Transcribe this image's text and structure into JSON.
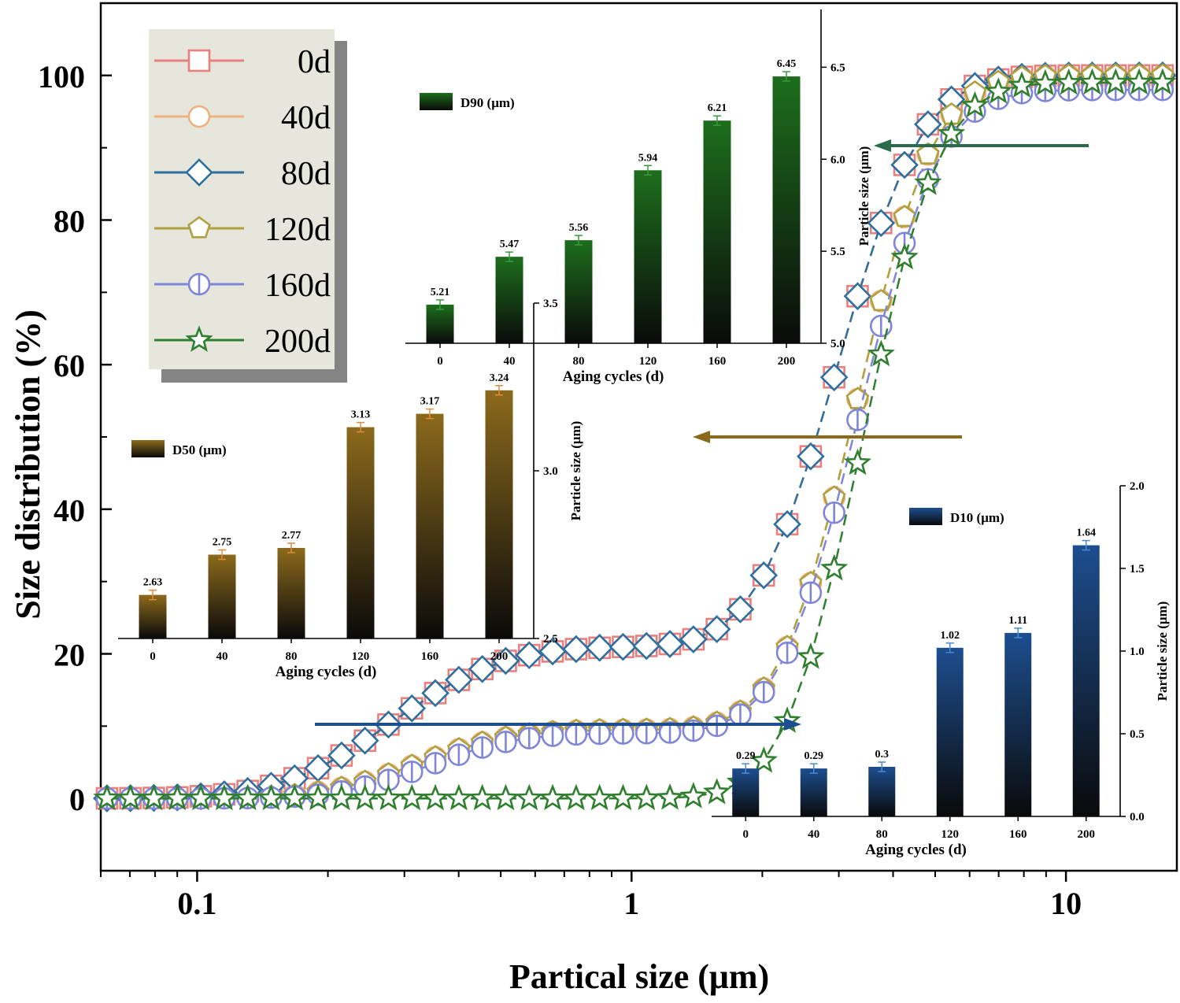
{
  "chart_data": [
    {
      "id": "main",
      "type": "scatter",
      "xlabel": "Partical size (μm)",
      "ylabel": "Size distribution (%)",
      "xscale": "log",
      "xlim": [
        0.06,
        18
      ],
      "ylim": [
        -10,
        110
      ],
      "xticks": [
        0.1,
        1,
        10
      ],
      "xtick_labels": [
        "0.1",
        "1",
        "10"
      ],
      "yticks": [
        0,
        20,
        40,
        60,
        80,
        100
      ],
      "ytick_labels": [
        "0",
        "20",
        "40",
        "60",
        "80",
        "100"
      ],
      "legend": "top-left",
      "series": [
        {
          "name": "0d",
          "color": "#e8807e",
          "marker": "square",
          "d": 0
        },
        {
          "name": "40d",
          "color": "#f0b080",
          "marker": "circle",
          "d": 0.03
        },
        {
          "name": "80d",
          "color": "#2e6f9e",
          "marker": "diamond",
          "d": 0
        },
        {
          "name": "120d",
          "color": "#b0a040",
          "marker": "pentagon",
          "d": 0.03
        },
        {
          "name": "160d",
          "color": "#7f86d8",
          "marker": "circle-bar",
          "d": 0.05
        },
        {
          "name": "200d",
          "color": "#2f7f2f",
          "marker": "star",
          "d": 0.11
        }
      ]
    },
    {
      "id": "d90",
      "type": "bar",
      "title": "D90 (μm)",
      "xlabel": "Aging cycles (d)",
      "ylabel": "Particle size (μm)",
      "categories": [
        "0",
        "40",
        "80",
        "120",
        "160",
        "200"
      ],
      "values": [
        5.21,
        5.47,
        5.56,
        5.94,
        6.21,
        6.45
      ],
      "value_labels": [
        "5.21",
        "5.47",
        "5.56",
        "5.94",
        "6.21",
        "6.45"
      ],
      "ylim": [
        5.0,
        6.6
      ],
      "yticks": [
        5.0,
        5.5,
        6.0,
        6.5
      ],
      "ytick_labels": [
        "5.0",
        "5.5",
        "6.0",
        "6.5"
      ],
      "color": "#1d6e1d"
    },
    {
      "id": "d50",
      "type": "bar",
      "title": "D50 (μm)",
      "xlabel": "Aging cycles (d)",
      "ylabel": "Particle size (μm)",
      "categories": [
        "0",
        "40",
        "80",
        "120",
        "160",
        "200"
      ],
      "values": [
        2.63,
        2.75,
        2.77,
        3.13,
        3.17,
        3.24
      ],
      "value_labels": [
        "2.63",
        "2.75",
        "2.77",
        "3.13",
        "3.17",
        "3.24"
      ],
      "ylim": [
        2.5,
        3.5
      ],
      "yticks": [
        2.5,
        3.0,
        3.5
      ],
      "ytick_labels": [
        "2.5",
        "3.0",
        "3.5"
      ],
      "color": "#8c6a1c"
    },
    {
      "id": "d10",
      "type": "bar",
      "title": "D10 (μm)",
      "xlabel": "Aging cycles (d)",
      "ylabel": "Particle size (μm)",
      "categories": [
        "0",
        "40",
        "80",
        "120",
        "160",
        "200"
      ],
      "values": [
        0.29,
        0.29,
        0.3,
        1.02,
        1.11,
        1.64
      ],
      "value_labels": [
        "0.29",
        "0.29",
        "0.3",
        "1.02",
        "1.11",
        "1.64"
      ],
      "ylim": [
        0.0,
        2.0
      ],
      "yticks": [
        0.0,
        0.5,
        1.0,
        1.5,
        2.0
      ],
      "ytick_labels": [
        "0.0",
        "0.5",
        "1.0",
        "1.5",
        "2.0"
      ],
      "color": "#1d4e8f"
    }
  ]
}
